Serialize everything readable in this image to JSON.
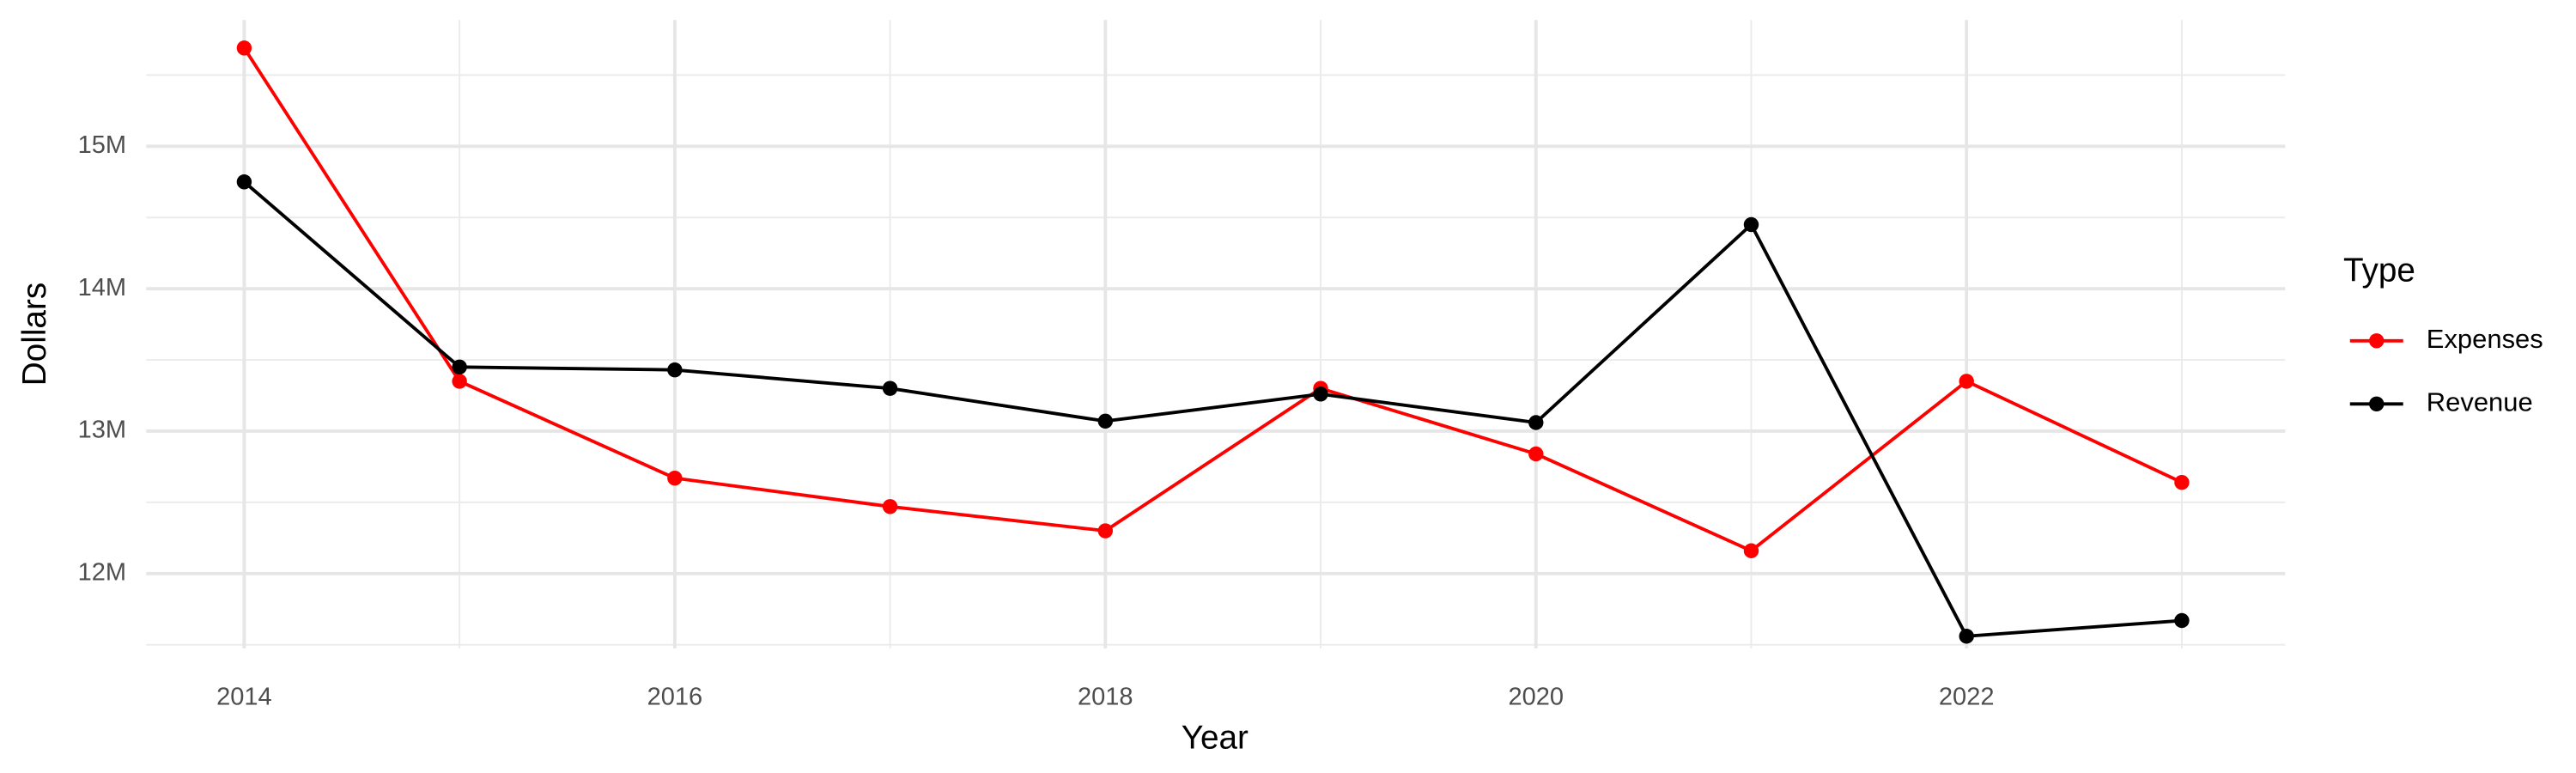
{
  "chart_data": {
    "type": "line",
    "x_label": "Year",
    "y_label": "Dollars",
    "legend_title": "Type",
    "x": [
      2014,
      2015,
      2016,
      2017,
      2018,
      2019,
      2020,
      2021,
      2022,
      2023
    ],
    "series": [
      {
        "name": "Expenses",
        "color": "#ff0000",
        "values": [
          15690000,
          13350000,
          12670000,
          12470000,
          12300000,
          13300000,
          12840000,
          12160000,
          13350000,
          12640000
        ]
      },
      {
        "name": "Revenue",
        "color": "#000000",
        "values": [
          14750000,
          13450000,
          13430000,
          13300000,
          13070000,
          13260000,
          13060000,
          14450000,
          11560000,
          11670000
        ]
      }
    ],
    "xlim": [
      2013.545,
      2023.48
    ],
    "xticks": [
      2014,
      2016,
      2018,
      2020,
      2022
    ],
    "x_minor_ticks": [
      2015,
      2017,
      2019,
      2021,
      2023
    ],
    "ylim": [
      11475000,
      15887000
    ],
    "yticks": [
      {
        "value": 12000000,
        "label": "12M"
      },
      {
        "value": 13000000,
        "label": "13M"
      },
      {
        "value": 14000000,
        "label": "14M"
      },
      {
        "value": 15000000,
        "label": "15M"
      }
    ],
    "y_minor_ticks": [
      11500000,
      12500000,
      13500000,
      14500000,
      15500000
    ],
    "grid": true,
    "legend": "right"
  }
}
